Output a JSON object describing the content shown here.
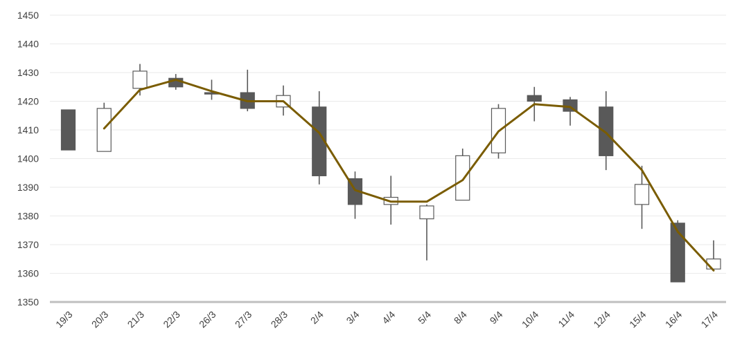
{
  "colors": {
    "up_fill": "#ffffff",
    "down_fill": "#595959",
    "wick": "#595959",
    "trend_line": "#7a5c00",
    "grid": "#eaeaea",
    "axis": "#bfbfbf"
  },
  "chart_data": {
    "type": "candlestick",
    "title": "",
    "xlabel": "",
    "ylabel": "",
    "ylim": [
      1350,
      1450
    ],
    "y_ticks": [
      1350,
      1360,
      1370,
      1380,
      1390,
      1400,
      1410,
      1420,
      1430,
      1440,
      1450
    ],
    "grid": "horizontal",
    "legend": "none",
    "categories": [
      "19/3",
      "20/3",
      "21/3",
      "22/3",
      "26/3",
      "27/3",
      "28/3",
      "2/4",
      "3/4",
      "4/4",
      "5/4",
      "8/4",
      "9/4",
      "10/4",
      "11/4",
      "12/4",
      "15/4",
      "16/4",
      "17/4"
    ],
    "candles": [
      {
        "open": 1417,
        "high": 1417,
        "low": 1403,
        "close": 1403
      },
      {
        "open": 1402.5,
        "high": 1419.5,
        "low": 1402.5,
        "close": 1417.5
      },
      {
        "open": 1424.5,
        "high": 1433,
        "low": 1422,
        "close": 1430.5
      },
      {
        "open": 1428,
        "high": 1429.5,
        "low": 1424,
        "close": 1425
      },
      {
        "open": 1423,
        "high": 1427.5,
        "low": 1420.5,
        "close": 1422.5
      },
      {
        "open": 1423,
        "high": 1431,
        "low": 1416.5,
        "close": 1417.5
      },
      {
        "open": 1418,
        "high": 1425.5,
        "low": 1415,
        "close": 1422
      },
      {
        "open": 1418,
        "high": 1423.5,
        "low": 1391,
        "close": 1394
      },
      {
        "open": 1393,
        "high": 1395.5,
        "low": 1379,
        "close": 1384
      },
      {
        "open": 1384,
        "high": 1394,
        "low": 1377,
        "close": 1386.5
      },
      {
        "open": 1379,
        "high": 1384,
        "low": 1364.5,
        "close": 1383.5
      },
      {
        "open": 1385.5,
        "high": 1403.5,
        "low": 1385.5,
        "close": 1401
      },
      {
        "open": 1402,
        "high": 1419,
        "low": 1400,
        "close": 1417.5
      },
      {
        "open": 1422,
        "high": 1425,
        "low": 1413,
        "close": 1420
      },
      {
        "open": 1420.5,
        "high": 1421.5,
        "low": 1411.5,
        "close": 1416.5
      },
      {
        "open": 1418,
        "high": 1423.5,
        "low": 1396,
        "close": 1401
      },
      {
        "open": 1384,
        "high": 1397.5,
        "low": 1375.5,
        "close": 1391
      },
      {
        "open": 1377.5,
        "high": 1378.5,
        "low": 1357,
        "close": 1357
      },
      {
        "open": 1361.5,
        "high": 1371.5,
        "low": 1361,
        "close": 1365
      }
    ],
    "trend": [
      null,
      1410.5,
      1424,
      1427.5,
      1423.5,
      1420,
      1420,
      1409,
      1389,
      1385,
      1385,
      1392.5,
      1409.5,
      1419,
      1418,
      1409,
      1396,
      1374.5,
      1361
    ]
  }
}
